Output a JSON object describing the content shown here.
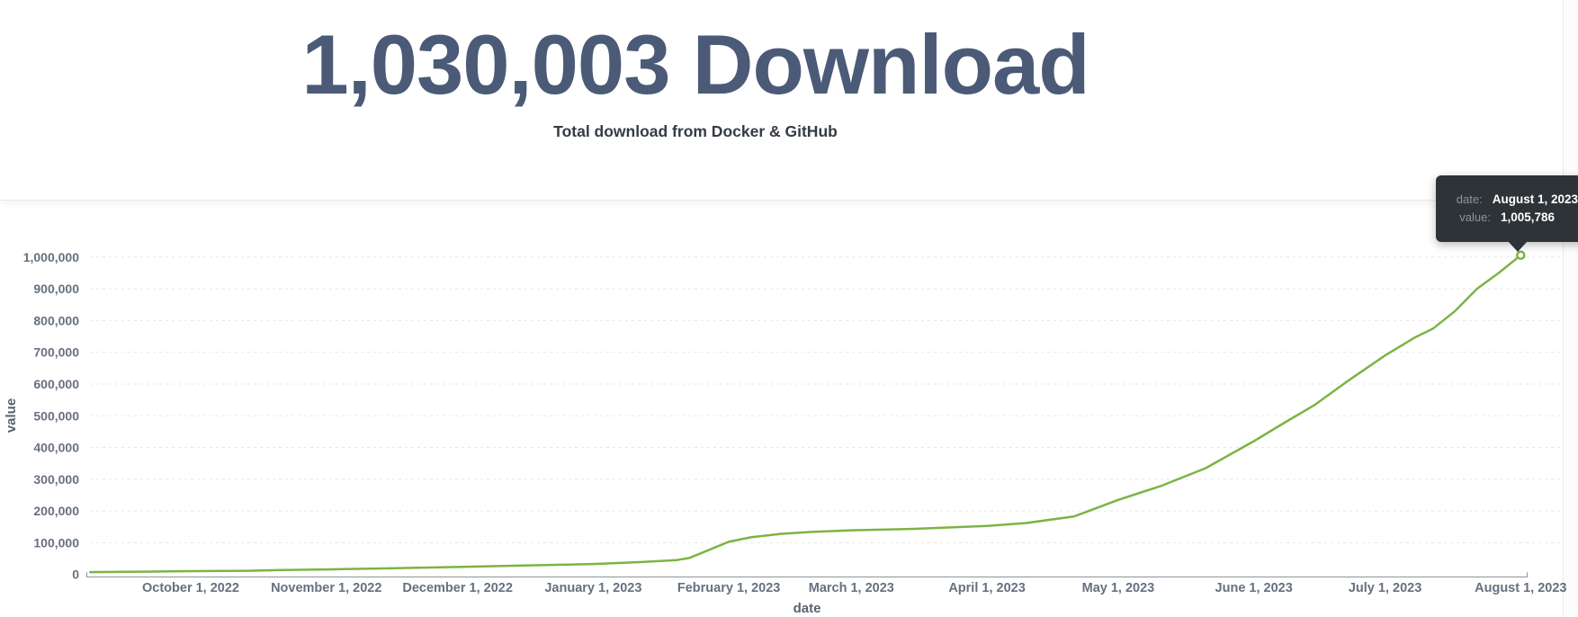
{
  "header": {
    "title": "1,030,003 Download",
    "subtitle": "Total download from Docker & GitHub"
  },
  "tooltip": {
    "date_label": "date:",
    "date_value": "August 1, 2023",
    "value_label": "value:",
    "value_value": "1,005,786"
  },
  "chart_data": {
    "type": "line",
    "xlabel": "date",
    "ylabel": "value",
    "grid": "horizontal-dashed",
    "legend": "none",
    "line_color": "#7db344",
    "grid_color": "#e7e7e7",
    "axis_color": "#8d939c",
    "xlim": [
      "2022-09-05",
      "2023-08-03"
    ],
    "ylim": [
      0,
      1120000
    ],
    "y_ticks": [
      0,
      100000,
      200000,
      300000,
      400000,
      500000,
      600000,
      700000,
      800000,
      900000,
      1000000
    ],
    "x_ticks": [
      {
        "date": "2022-10-01",
        "label": "October 1, 2022"
      },
      {
        "date": "2022-11-01",
        "label": "November 1, 2022"
      },
      {
        "date": "2022-12-01",
        "label": "December 1, 2022"
      },
      {
        "date": "2023-01-01",
        "label": "January 1, 2023"
      },
      {
        "date": "2023-02-01",
        "label": "February 1, 2023"
      },
      {
        "date": "2023-03-01",
        "label": "March 1, 2023"
      },
      {
        "date": "2023-04-01",
        "label": "April 1, 2023"
      },
      {
        "date": "2023-05-01",
        "label": "May 1, 2023"
      },
      {
        "date": "2023-06-01",
        "label": "June 1, 2023"
      },
      {
        "date": "2023-07-01",
        "label": "July 1, 2023"
      },
      {
        "date": "2023-08-01",
        "label": "August 1, 2023"
      }
    ],
    "series": [
      {
        "name": "downloads",
        "points": [
          [
            "2022-09-08",
            7500
          ],
          [
            "2022-09-22",
            9000
          ],
          [
            "2022-10-01",
            10500
          ],
          [
            "2022-10-14",
            11500
          ],
          [
            "2022-10-22",
            14000
          ],
          [
            "2022-11-01",
            16000
          ],
          [
            "2022-11-14",
            19000
          ],
          [
            "2022-12-01",
            23500
          ],
          [
            "2022-12-16",
            28000
          ],
          [
            "2023-01-01",
            33000
          ],
          [
            "2023-01-12",
            39000
          ],
          [
            "2023-01-20",
            45000
          ],
          [
            "2023-01-23",
            52000
          ],
          [
            "2023-02-01",
            103000
          ],
          [
            "2023-02-06",
            117000
          ],
          [
            "2023-02-13",
            128000
          ],
          [
            "2023-02-20",
            134000
          ],
          [
            "2023-03-01",
            139000
          ],
          [
            "2023-03-16",
            144000
          ],
          [
            "2023-04-01",
            153000
          ],
          [
            "2023-04-10",
            162000
          ],
          [
            "2023-04-21",
            183000
          ],
          [
            "2023-05-01",
            235000
          ],
          [
            "2023-05-11",
            280000
          ],
          [
            "2023-05-21",
            335000
          ],
          [
            "2023-06-01",
            420000
          ],
          [
            "2023-06-08",
            478000
          ],
          [
            "2023-06-15",
            535000
          ],
          [
            "2023-06-22",
            605000
          ],
          [
            "2023-07-01",
            690000
          ],
          [
            "2023-07-08",
            748000
          ],
          [
            "2023-07-12",
            775000
          ],
          [
            "2023-07-17",
            830000
          ],
          [
            "2023-07-22",
            900000
          ],
          [
            "2023-07-27",
            950000
          ],
          [
            "2023-08-01",
            1005786
          ]
        ]
      }
    ],
    "hovered_point": {
      "date": "2023-08-01",
      "value": 1005786
    }
  }
}
